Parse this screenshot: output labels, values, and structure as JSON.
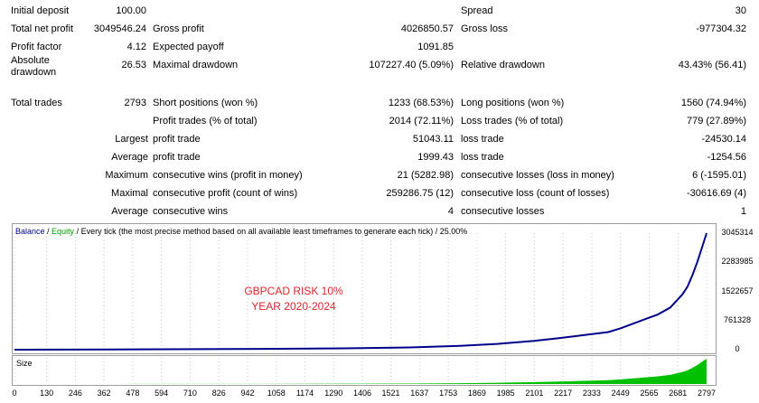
{
  "stats": [
    {
      "label": "Initial deposit",
      "value": "100.00",
      "mid_label": "",
      "mid_value": "",
      "right_label": "Spread",
      "right_value": "30"
    },
    {
      "label": "Total net profit",
      "value": "3049546.24",
      "mid_label": "Gross profit",
      "mid_value": "4026850.57",
      "right_label": "Gross loss",
      "right_value": "-977304.32"
    },
    {
      "label": "Profit factor",
      "value": "4.12",
      "mid_label": "Expected payoff",
      "mid_value": "1091.85",
      "right_label": "",
      "right_value": ""
    },
    {
      "label": "Absolute drawdown",
      "value": "26.53",
      "mid_label": "Maximal drawdown",
      "mid_value": "107227.40 (5.09%)",
      "right_label": "Relative drawdown",
      "right_value": "43.43% (56.41)"
    },
    {
      "label": "Total trades",
      "value": "2793",
      "mid_label": "Short positions (won %)",
      "mid_value": "1233 (68.53%)",
      "right_label": "Long positions (won %)",
      "right_value": "1560 (74.94%)"
    },
    {
      "label": "",
      "value": "",
      "mid_label": "Profit trades (% of total)",
      "mid_value": "2014 (72.11%)",
      "right_label": "Loss trades (% of total)",
      "right_value": "779 (27.89%)"
    },
    {
      "label": "Largest",
      "value": "",
      "mid_label": "profit trade",
      "mid_value": "51043.11",
      "right_label": "loss trade",
      "right_value": "-24530.14"
    },
    {
      "label": "Average",
      "value": "",
      "mid_label": "profit trade",
      "mid_value": "1999.43",
      "right_label": "loss trade",
      "right_value": "-1254.56"
    },
    {
      "label": "Maximum",
      "value": "",
      "mid_label": "consecutive wins (profit in money)",
      "mid_value": "21 (5282.98)",
      "right_label": "consecutive losses (loss in money)",
      "right_value": "6 (-1595.01)"
    },
    {
      "label": "Maximal",
      "value": "",
      "mid_label": "consecutive profit (count of wins)",
      "mid_value": "259286.75 (12)",
      "right_label": "consecutive loss (count of losses)",
      "right_value": "-30616.69 (4)"
    },
    {
      "label": "Average",
      "value": "",
      "mid_label": "consecutive wins",
      "mid_value": "4",
      "right_label": "consecutive losses",
      "right_value": "1"
    }
  ],
  "chart": {
    "legend_balance": "Balance",
    "legend_sep": " / ",
    "legend_equity": "Equity",
    "legend_rest": " / Every tick (the most precise method based on all available least timeframes to generate each tick) / 25.00%",
    "watermark_line1": "GBPCAD RISK 10%",
    "watermark_line2": "YEAR 2020-2024",
    "size_label": "Size",
    "colors": {
      "balance": "#00008b",
      "equity": "#00a000",
      "size": "#00c000",
      "grid": "#c8c8c8"
    }
  },
  "chart_data": {
    "type": "line",
    "title": "",
    "xlabel": "",
    "ylabel": "",
    "ylim": [
      0,
      3045314
    ],
    "xlim": [
      0,
      2797
    ],
    "yticks": [
      "3045314",
      "2283985",
      "1522657",
      "761328",
      "0"
    ],
    "xticks": [
      "0",
      "130",
      "246",
      "362",
      "478",
      "594",
      "710",
      "826",
      "942",
      "1058",
      "1174",
      "1290",
      "1406",
      "1521",
      "1637",
      "1753",
      "1869",
      "1985",
      "2101",
      "2217",
      "2333",
      "2449",
      "2565",
      "2681",
      "2797"
    ],
    "series": [
      {
        "name": "Balance",
        "x": [
          0,
          500,
          1000,
          1400,
          1600,
          1800,
          1950,
          2100,
          2200,
          2300,
          2400,
          2450,
          2500,
          2550,
          2600,
          2650,
          2700,
          2720,
          2740,
          2760,
          2780,
          2797
        ],
        "y": [
          100,
          8000,
          20000,
          40000,
          60000,
          100000,
          150000,
          230000,
          300000,
          380000,
          460000,
          560000,
          680000,
          800000,
          920000,
          1100000,
          1450000,
          1650000,
          1950000,
          2300000,
          2700000,
          3045314
        ]
      }
    ]
  }
}
